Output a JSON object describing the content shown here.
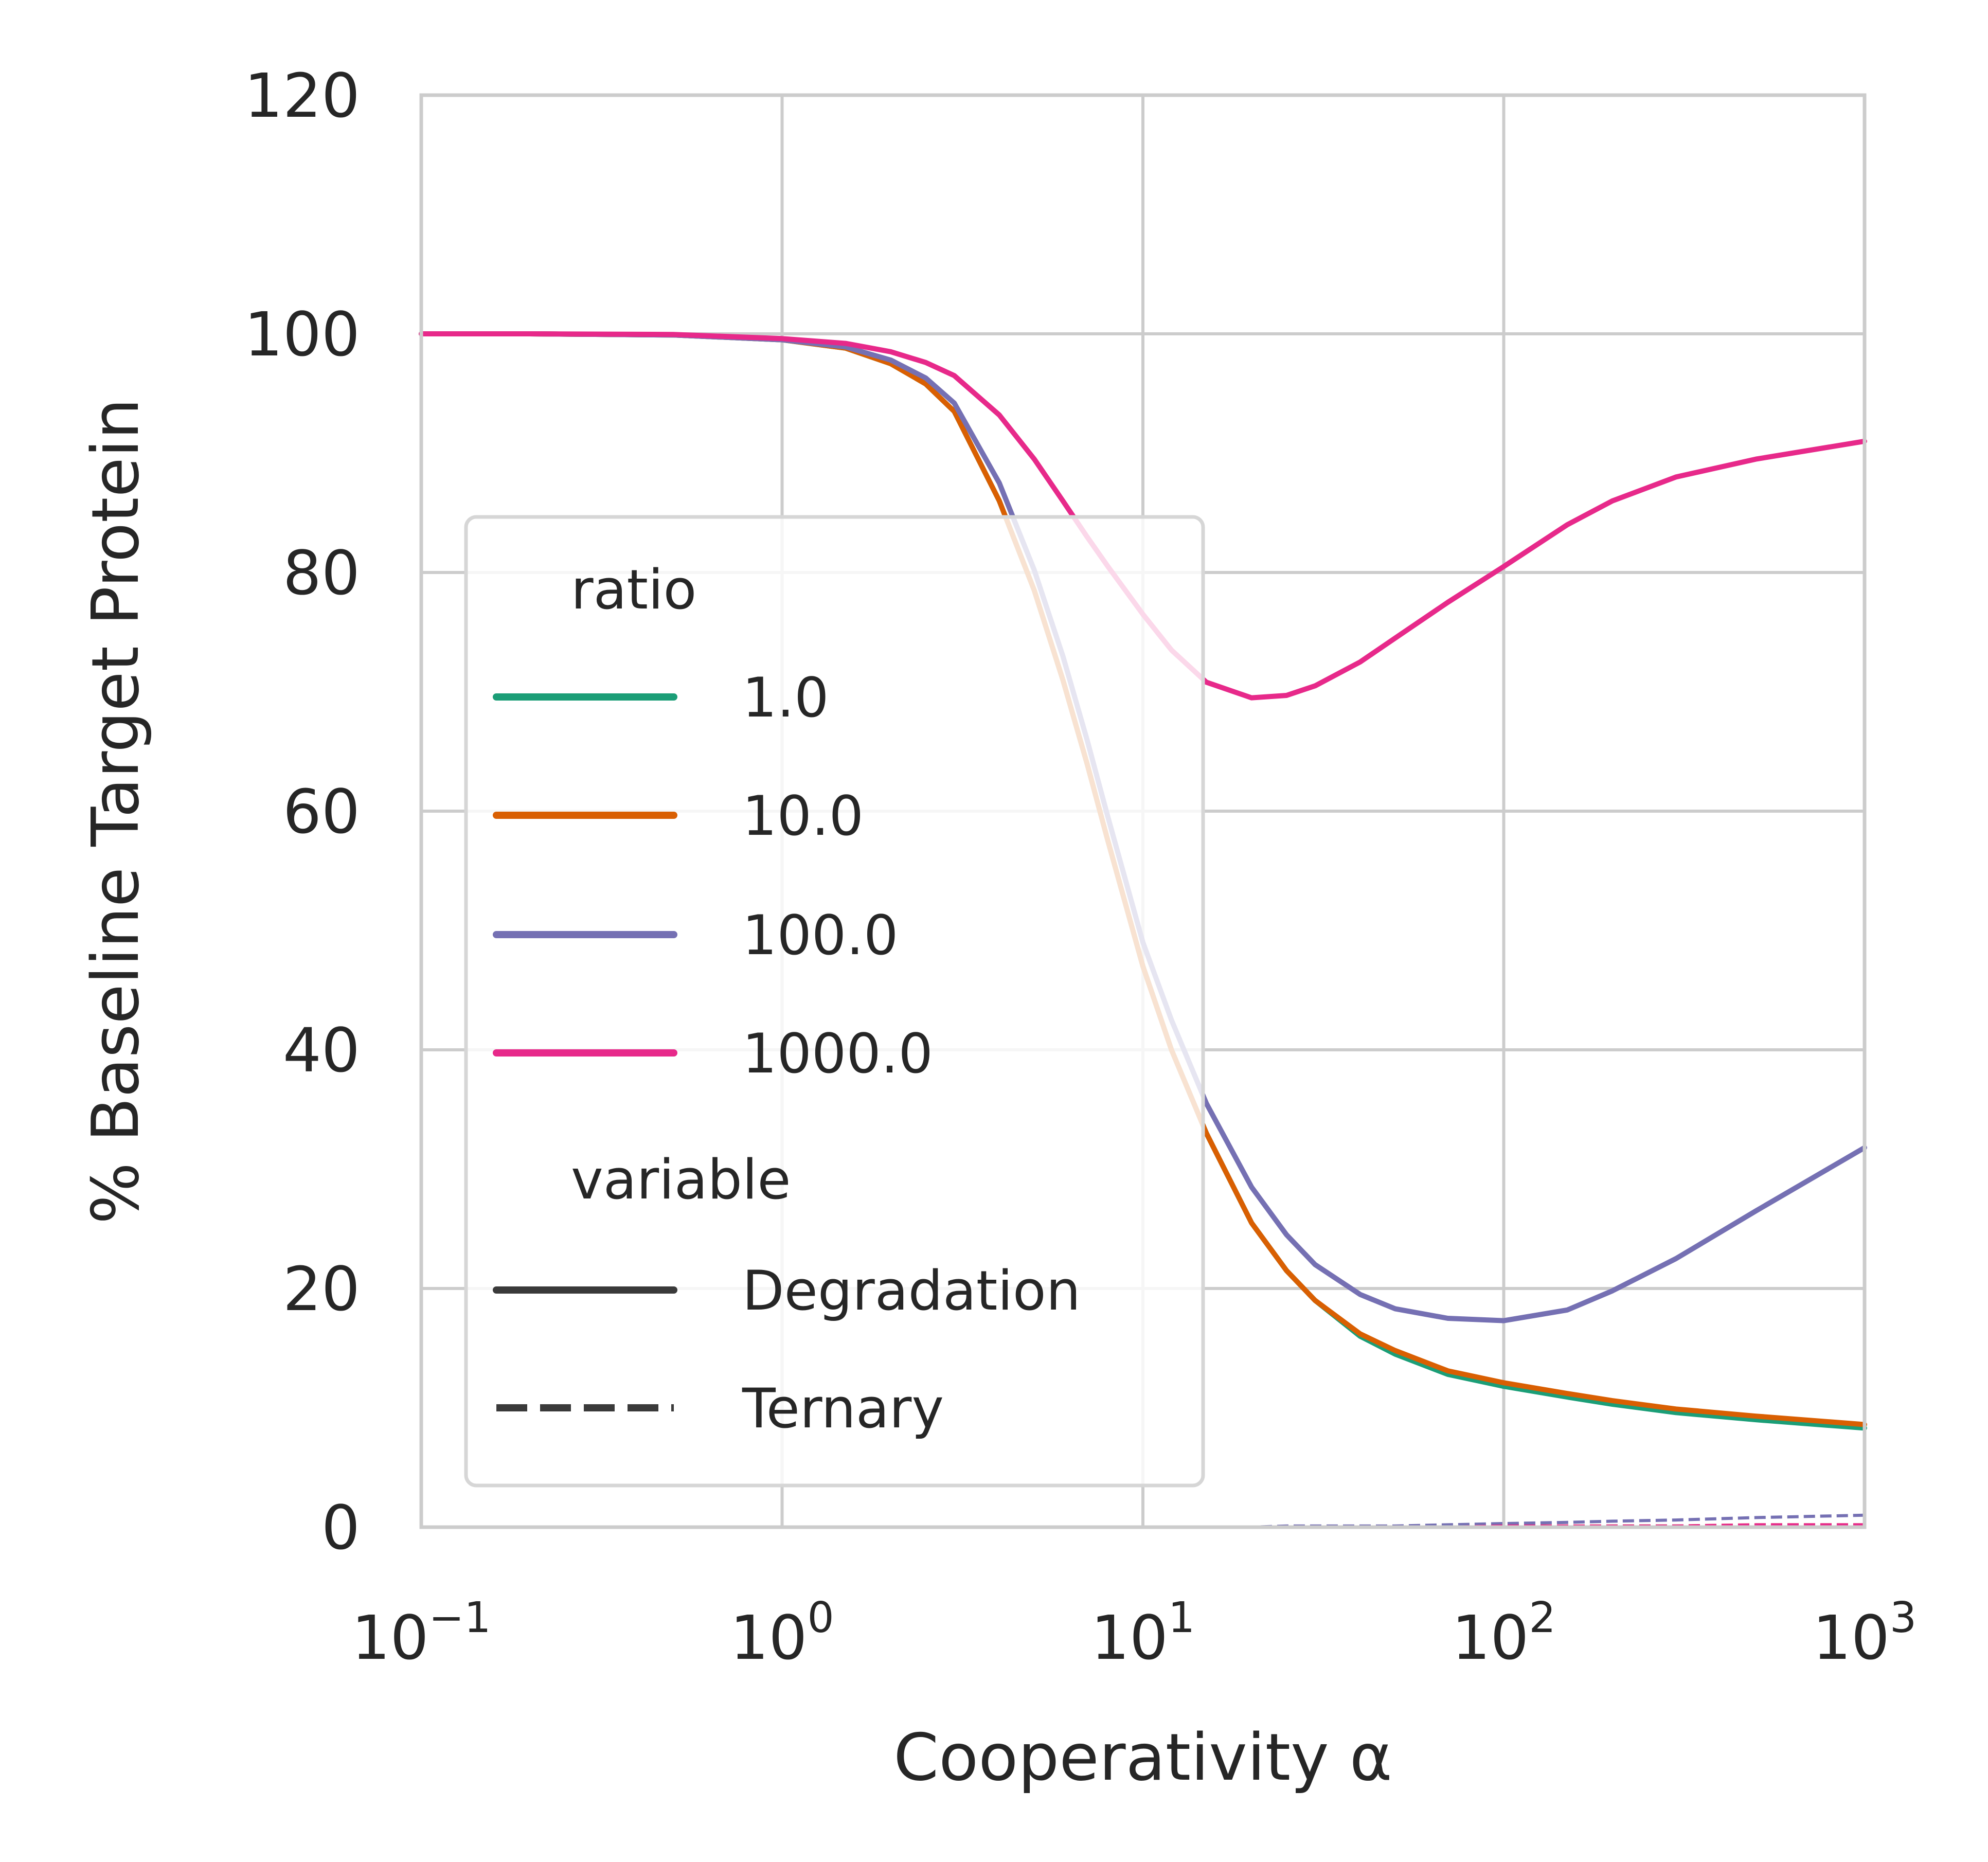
{
  "chart_data": {
    "type": "line",
    "title": "",
    "xlabel": "Cooperativity α",
    "ylabel": "% Baseline Target Protein",
    "xscale": "log",
    "xlim": [
      0.1,
      1000
    ],
    "ylim": [
      0,
      120
    ],
    "grid": true,
    "x_ticks": [
      {
        "base": "10",
        "exp": "−1"
      },
      {
        "base": "10",
        "exp": "0"
      },
      {
        "base": "10",
        "exp": "1"
      },
      {
        "base": "10",
        "exp": "2"
      },
      {
        "base": "10",
        "exp": "3"
      }
    ],
    "y_ticks": [
      "0",
      "20",
      "40",
      "60",
      "80",
      "100",
      "120"
    ],
    "legend": {
      "placement": "lower-left",
      "hue_title": "ratio",
      "style_title": "variable",
      "style_entries": [
        "Degradation",
        "Ternary"
      ]
    },
    "x": [
      0.1,
      0.2,
      0.5,
      1,
      1.5,
      2,
      2.5,
      3,
      4,
      5,
      6,
      7,
      8,
      10,
      12,
      15,
      20,
      25,
      30,
      40,
      50,
      70,
      100,
      150,
      200,
      300,
      500,
      1000
    ],
    "series": [
      {
        "name": "1.0",
        "color": "#1b9e77",
        "variable": "Degradation",
        "values": [
          100,
          100,
          99.9,
          99.5,
          98.8,
          97.5,
          95.8,
          93.5,
          86,
          78.5,
          71,
          64,
          57.5,
          47,
          40,
          33,
          25.5,
          21.5,
          19,
          16,
          14.5,
          12.8,
          11.8,
          10.9,
          10.3,
          9.6,
          9.0,
          8.3
        ]
      },
      {
        "name": "10.0",
        "color": "#d95f02",
        "variable": "Degradation",
        "values": [
          100,
          100,
          99.9,
          99.5,
          98.8,
          97.5,
          95.8,
          93.5,
          86,
          78.5,
          71,
          64,
          57.5,
          47,
          40,
          33,
          25.5,
          21.5,
          19,
          16.2,
          14.8,
          13.1,
          12.1,
          11.2,
          10.6,
          9.9,
          9.3,
          8.6
        ]
      },
      {
        "name": "100.0",
        "color": "#7570b3",
        "variable": "Degradation",
        "values": [
          100,
          100,
          99.9,
          99.5,
          98.9,
          97.8,
          96.3,
          94.2,
          87.5,
          80.2,
          73,
          66,
          59.5,
          49,
          42.5,
          35.5,
          28.5,
          24.5,
          22,
          19.5,
          18.3,
          17.5,
          17.3,
          18.2,
          19.8,
          22.5,
          26.5,
          31.8
        ]
      },
      {
        "name": "1000.0",
        "color": "#e7298a",
        "variable": "Degradation",
        "values": [
          100,
          100,
          99.95,
          99.6,
          99.2,
          98.5,
          97.6,
          96.5,
          93.2,
          89.5,
          86,
          83,
          80.5,
          76.5,
          73.5,
          70.8,
          69.5,
          69.7,
          70.5,
          72.5,
          74.5,
          77.5,
          80.5,
          84,
          86,
          88,
          89.5,
          91
        ]
      },
      {
        "name": "1.0",
        "color": "#1b9e77",
        "variable": "Ternary",
        "values": [
          0,
          0,
          0,
          0,
          0,
          0,
          0,
          0,
          0,
          0,
          0,
          0,
          0,
          0,
          0,
          0,
          0,
          0,
          0,
          0,
          0,
          0,
          0,
          0,
          0.1,
          0.1,
          0.1,
          0.1
        ]
      },
      {
        "name": "10.0",
        "color": "#d95f02",
        "variable": "Ternary",
        "values": [
          0,
          0,
          0,
          0,
          0,
          0,
          0,
          0,
          0,
          0,
          0,
          0,
          0,
          0,
          0,
          0,
          0,
          0,
          0,
          0,
          0,
          0.1,
          0.1,
          0.1,
          0.1,
          0.1,
          0.2,
          0.2
        ]
      },
      {
        "name": "100.0",
        "color": "#7570b3",
        "variable": "Ternary",
        "values": [
          0,
          0,
          0,
          0,
          0,
          0,
          0,
          0,
          0,
          0,
          0,
          0,
          0,
          0,
          0,
          0,
          0,
          0.1,
          0.1,
          0.1,
          0.1,
          0.2,
          0.3,
          0.4,
          0.5,
          0.6,
          0.8,
          1.0
        ]
      },
      {
        "name": "1000.0",
        "color": "#e7298a",
        "variable": "Ternary",
        "values": [
          0,
          0,
          0,
          0,
          0,
          0,
          0,
          0,
          0,
          0,
          0,
          0,
          0,
          0,
          0,
          0,
          0,
          0,
          0,
          0,
          0,
          0,
          0.1,
          0.1,
          0.1,
          0.1,
          0.2,
          0.2
        ]
      }
    ]
  }
}
